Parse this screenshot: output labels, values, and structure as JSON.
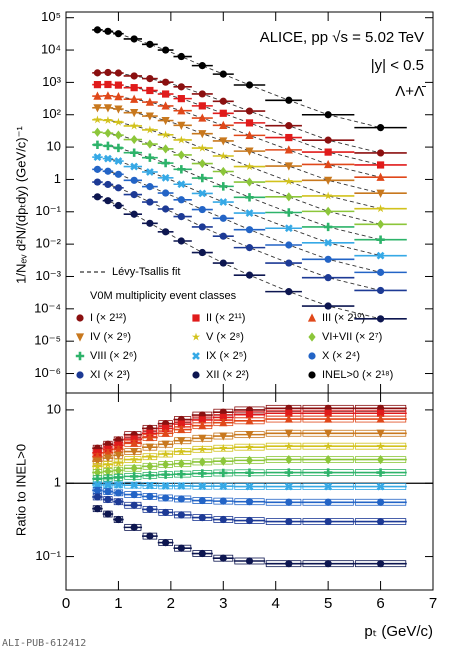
{
  "chart_data": [
    {
      "type": "scatter",
      "title": "ALICE, pp √s = 5.02 TeV",
      "subtitle": "|y| < 0.5",
      "annotation": "Λ+Λ̄",
      "fit_label": "Lévy-Tsallis fit",
      "legend_title": "V0M multiplicity event classes",
      "ylabel": "1/Nₑᵥ d²N/(dpₜdy)  (GeV/c)⁻¹",
      "log_y": true,
      "xlim": [
        0,
        7
      ],
      "ylim": [
        2.5e-07,
        150000.0
      ],
      "yticks": [
        {
          "value": 1e-06,
          "label": "10⁻⁶"
        },
        {
          "value": 1e-05,
          "label": "10⁻⁵"
        },
        {
          "value": 0.0001,
          "label": "10⁻⁴"
        },
        {
          "value": 0.001,
          "label": "10⁻³"
        },
        {
          "value": 0.01,
          "label": "10⁻²"
        },
        {
          "value": 0.1,
          "label": "10⁻¹"
        },
        1,
        10,
        {
          "value": 100,
          "label": "10²"
        },
        {
          "value": 1000,
          "label": "10³"
        },
        {
          "value": 10000,
          "label": "10⁴"
        },
        {
          "value": 100000,
          "label": "10⁵"
        }
      ],
      "x": [
        0.6,
        0.8,
        1.0,
        1.3,
        1.6,
        1.9,
        2.2,
        2.6,
        3.0,
        3.5,
        4.25,
        5.0,
        6.0
      ],
      "x_edges": [
        0.5,
        0.7,
        0.9,
        1.1,
        1.45,
        1.75,
        2.05,
        2.4,
        2.8,
        3.2,
        3.8,
        4.5,
        5.5,
        6.5
      ],
      "series": [
        {
          "name": "I (× 2¹²)",
          "color": "#8b1010",
          "marker": "circle",
          "values": [
            1970,
            2020,
            1950,
            1580,
            1310,
            1014,
            728,
            439,
            261,
            130,
            46,
            16.4,
            6.6
          ]
        },
        {
          "name": "II (× 2¹¹)",
          "color": "#e01b1b",
          "marker": "square",
          "values": [
            853,
            861,
            825,
            688,
            562,
            437,
            315,
            188,
            111,
            56,
            19.7,
            7.0,
            2.8
          ]
        },
        {
          "name": "III (× 2¹⁰)",
          "color": "#e0481a",
          "marker": "triangle",
          "values": [
            377,
            385,
            363,
            301,
            246,
            187,
            133,
            79,
            47,
            23,
            8.2,
            2.9,
            1.17
          ]
        },
        {
          "name": "IV (× 2⁹)",
          "color": "#c8781e",
          "marker": "triangle-down",
          "values": [
            164,
            163,
            150,
            116,
            91,
            66,
            47,
            26,
            15.5,
            7.5,
            2.6,
            0.94,
            0.375
          ]
        },
        {
          "name": "V (× 2⁸)",
          "color": "#d2c21c",
          "marker": "star",
          "values": [
            70,
            67,
            59,
            45,
            34,
            24,
            16.6,
            9.3,
            5.3,
            2.5,
            0.87,
            0.31,
            0.125
          ]
        },
        {
          "name": "VI+VII (× 2⁷)",
          "color": "#8cc63a",
          "marker": "diamond",
          "values": [
            28.7,
            27,
            23.4,
            17.1,
            12.4,
            8.8,
            5.7,
            3.1,
            1.76,
            0.83,
            0.29,
            0.103,
            0.041
          ]
        },
        {
          "name": "VIII (× 2⁶)",
          "color": "#2db36a",
          "marker": "plus",
          "values": [
            11.8,
            10.9,
            9.4,
            6.7,
            4.7,
            3.2,
            2.05,
            1.1,
            0.61,
            0.28,
            0.095,
            0.034,
            0.0137
          ]
        },
        {
          "name": "IX (× 2⁵)",
          "color": "#36a9e6",
          "marker": "cross",
          "values": [
            4.9,
            4.4,
            3.7,
            2.5,
            1.7,
            1.12,
            0.71,
            0.37,
            0.2,
            0.091,
            0.031,
            0.011,
            0.0044
          ]
        },
        {
          "name": "X (× 2⁴)",
          "color": "#2364c6",
          "marker": "circle",
          "values": [
            2.05,
            1.79,
            1.44,
            0.94,
            0.6,
            0.38,
            0.235,
            0.117,
            0.063,
            0.028,
            0.0094,
            0.0034,
            0.00134
          ]
        },
        {
          "name": "XI (× 2³)",
          "color": "#1d3a95",
          "marker": "circle",
          "values": [
            0.83,
            0.7,
            0.55,
            0.34,
            0.2,
            0.122,
            0.071,
            0.034,
            0.0176,
            0.0078,
            0.0026,
            0.00092,
            0.00037
          ]
        },
        {
          "name": "XII (× 2²)",
          "color": "#0d1650",
          "marker": "circle",
          "values": [
            0.29,
            0.22,
            0.156,
            0.084,
            0.044,
            0.024,
            0.0125,
            0.0055,
            0.0026,
            0.0011,
            0.00034,
            0.000122,
            4.9e-05
          ]
        },
        {
          "name": "INEL>0 (× 2¹⁸)",
          "color": "#000000",
          "marker": "circle",
          "values": [
            42000,
            38000,
            32000,
            22000,
            15000,
            10000,
            6300,
            3300,
            1800,
            830,
            280,
            100,
            40
          ]
        }
      ]
    },
    {
      "type": "scatter",
      "ylabel": "Ratio to INEL>0",
      "xlabel": "pₜ (GeV/c)",
      "footer": "ALI-PUB-612412",
      "log_y": true,
      "xlim": [
        0,
        7
      ],
      "xticks": [
        0,
        1,
        2,
        3,
        4,
        5,
        6,
        7
      ],
      "ylim": [
        0.035,
        17
      ],
      "yticks": [
        {
          "value": 0.1,
          "label": "10⁻¹"
        },
        1,
        10
      ],
      "reference_line": 1,
      "x": [
        0.6,
        0.8,
        1.0,
        1.3,
        1.6,
        1.9,
        2.2,
        2.6,
        3.0,
        3.5,
        4.25,
        5.0,
        6.0
      ],
      "x_edges": [
        0.5,
        0.7,
        0.9,
        1.1,
        1.45,
        1.75,
        2.05,
        2.4,
        2.8,
        3.2,
        3.8,
        4.5,
        5.5,
        6.5
      ],
      "series": [
        {
          "color": "#8b1010",
          "marker": "circle",
          "values": [
            3.0,
            3.4,
            3.9,
            4.6,
            5.6,
            6.5,
            7.4,
            8.5,
            9.3,
            10,
            10.5,
            10.5,
            10.5
          ]
        },
        {
          "color": "#e01b1b",
          "marker": "square",
          "values": [
            2.6,
            2.9,
            3.3,
            4.0,
            4.8,
            5.6,
            6.4,
            7.3,
            7.9,
            8.6,
            9.0,
            9.0,
            9.0
          ]
        },
        {
          "color": "#e0481a",
          "marker": "triangle",
          "values": [
            2.3,
            2.6,
            2.9,
            3.5,
            4.2,
            4.8,
            5.4,
            6.1,
            6.7,
            7.1,
            7.5,
            7.5,
            7.5
          ]
        },
        {
          "color": "#c8781e",
          "marker": "triangle-down",
          "values": [
            2.0,
            2.2,
            2.4,
            2.7,
            3.1,
            3.4,
            3.8,
            4.1,
            4.4,
            4.6,
            4.8,
            4.8,
            4.8
          ]
        },
        {
          "color": "#d2c21c",
          "marker": "star",
          "values": [
            1.7,
            1.8,
            1.9,
            2.1,
            2.3,
            2.5,
            2.7,
            2.9,
            3.0,
            3.1,
            3.2,
            3.2,
            3.2
          ]
        },
        {
          "color": "#8cc63a",
          "marker": "diamond",
          "values": [
            1.4,
            1.45,
            1.5,
            1.6,
            1.7,
            1.8,
            1.85,
            1.95,
            2.0,
            2.05,
            2.1,
            2.1,
            2.1
          ]
        },
        {
          "color": "#2db36a",
          "marker": "plus",
          "values": [
            1.15,
            1.17,
            1.2,
            1.24,
            1.28,
            1.31,
            1.33,
            1.36,
            1.38,
            1.39,
            1.4,
            1.4,
            1.4
          ]
        },
        {
          "color": "#36a9e6",
          "marker": "cross",
          "values": [
            0.95,
            0.95,
            0.95,
            0.94,
            0.93,
            0.92,
            0.92,
            0.91,
            0.91,
            0.9,
            0.9,
            0.9,
            0.9
          ]
        },
        {
          "color": "#2364c6",
          "marker": "circle",
          "values": [
            0.8,
            0.77,
            0.74,
            0.7,
            0.66,
            0.63,
            0.61,
            0.58,
            0.57,
            0.56,
            0.55,
            0.55,
            0.55
          ]
        },
        {
          "color": "#1d3a95",
          "marker": "circle",
          "values": [
            0.65,
            0.6,
            0.56,
            0.5,
            0.44,
            0.4,
            0.37,
            0.34,
            0.32,
            0.31,
            0.3,
            0.3,
            0.3
          ]
        },
        {
          "color": "#0d1650",
          "marker": "circle",
          "values": [
            0.45,
            0.38,
            0.32,
            0.25,
            0.19,
            0.155,
            0.13,
            0.11,
            0.095,
            0.087,
            0.08,
            0.08,
            0.08
          ]
        }
      ]
    }
  ]
}
